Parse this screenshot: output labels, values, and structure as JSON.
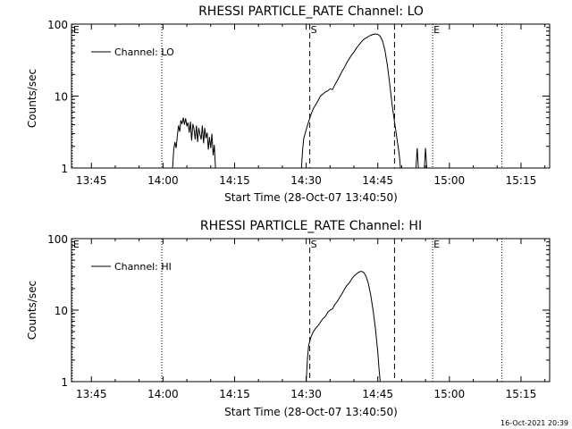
{
  "footer_timestamp": "16-Oct-2021 20:39",
  "chart_data": [
    {
      "type": "line",
      "title": "RHESSI PARTICLE_RATE Channel: LO",
      "xlabel": "Start Time (28-Oct-07 13:40:50)",
      "ylabel": "Counts/sec",
      "y_scale": "log",
      "ylim": [
        1,
        100
      ],
      "xlim": [
        "13:40:50",
        "15:21:00"
      ],
      "x_ticks": [
        "13:45",
        "14:00",
        "14:15",
        "14:30",
        "14:45",
        "15:00",
        "15:15"
      ],
      "y_ticks": [
        "1",
        "10",
        "100"
      ],
      "legend": "Channel: LO",
      "legend_position": "top-left",
      "markers": [
        {
          "label": "E",
          "time": "13:41:00",
          "style": "dotted"
        },
        {
          "label": "",
          "time": "13:59:45",
          "style": "dotted"
        },
        {
          "label": "S",
          "time": "14:30:45",
          "style": "dashed"
        },
        {
          "label": "",
          "time": "14:48:30",
          "style": "dashed"
        },
        {
          "label": "E",
          "time": "14:56:30",
          "style": "dotted"
        },
        {
          "label": "",
          "time": "15:11:00",
          "style": "dotted"
        }
      ],
      "series": [
        {
          "name": "Channel: LO",
          "segments": [
            [
              [
                "14:02:00",
                1.0
              ],
              [
                "14:02:15",
                1.8
              ],
              [
                "14:02:30",
                2.3
              ],
              [
                "14:02:45",
                1.9
              ],
              [
                "14:03:00",
                2.8
              ],
              [
                "14:03:15",
                3.9
              ],
              [
                "14:03:30",
                3.2
              ],
              [
                "14:03:45",
                4.6
              ],
              [
                "14:04:00",
                4.1
              ],
              [
                "14:04:15",
                5.0
              ],
              [
                "14:04:30",
                4.0
              ],
              [
                "14:04:45",
                4.9
              ],
              [
                "14:05:00",
                3.8
              ],
              [
                "14:05:15",
                4.3
              ],
              [
                "14:05:30",
                3.1
              ],
              [
                "14:05:45",
                4.4
              ],
              [
                "14:06:00",
                2.4
              ],
              [
                "14:06:15",
                4.1
              ],
              [
                "14:06:30",
                3.5
              ],
              [
                "14:06:45",
                2.5
              ],
              [
                "14:07:00",
                3.9
              ],
              [
                "14:07:15",
                2.3
              ],
              [
                "14:07:30",
                3.6
              ],
              [
                "14:07:45",
                2.9
              ],
              [
                "14:08:00",
                2.5
              ],
              [
                "14:08:15",
                3.9
              ],
              [
                "14:08:30",
                2.2
              ],
              [
                "14:08:45",
                3.6
              ],
              [
                "14:09:00",
                2.6
              ],
              [
                "14:09:15",
                3.1
              ],
              [
                "14:09:30",
                1.8
              ],
              [
                "14:09:45",
                2.7
              ],
              [
                "14:10:00",
                1.9
              ],
              [
                "14:10:15",
                3.0
              ],
              [
                "14:10:30",
                1.5
              ],
              [
                "14:10:45",
                2.1
              ],
              [
                "14:11:00",
                1.0
              ]
            ],
            [
              [
                "14:29:00",
                1.0
              ],
              [
                "14:29:15",
                1.8
              ],
              [
                "14:29:30",
                2.6
              ],
              [
                "14:30:00",
                3.4
              ],
              [
                "14:30:30",
                4.4
              ],
              [
                "14:31:00",
                5.5
              ],
              [
                "14:31:30",
                6.7
              ],
              [
                "14:32:00",
                7.6
              ],
              [
                "14:32:30",
                8.7
              ],
              [
                "14:33:00",
                10.0
              ],
              [
                "14:33:30",
                10.7
              ],
              [
                "14:34:00",
                11.4
              ],
              [
                "14:34:30",
                11.8
              ],
              [
                "14:35:00",
                12.6
              ],
              [
                "14:35:30",
                12.3
              ],
              [
                "14:36:00",
                14.4
              ],
              [
                "14:36:30",
                16.4
              ],
              [
                "14:37:00",
                19.0
              ],
              [
                "14:37:30",
                22.0
              ],
              [
                "14:38:00",
                25.0
              ],
              [
                "14:38:30",
                29.0
              ],
              [
                "14:39:00",
                33.0
              ],
              [
                "14:39:30",
                37.0
              ],
              [
                "14:40:00",
                41.0
              ],
              [
                "14:40:30",
                46.0
              ],
              [
                "14:41:00",
                51.0
              ],
              [
                "14:41:30",
                56.0
              ],
              [
                "14:42:00",
                61.0
              ],
              [
                "14:42:30",
                64.0
              ],
              [
                "14:43:00",
                67.0
              ],
              [
                "14:43:30",
                70.0
              ],
              [
                "14:44:00",
                72.0
              ],
              [
                "14:44:30",
                73.0
              ],
              [
                "14:45:00",
                72.0
              ],
              [
                "14:45:30",
                68.0
              ],
              [
                "14:46:00",
                58.0
              ],
              [
                "14:46:30",
                43.0
              ],
              [
                "14:47:00",
                27.0
              ],
              [
                "14:47:30",
                14.5
              ],
              [
                "14:48:00",
                7.6
              ],
              [
                "14:48:30",
                4.4
              ],
              [
                "14:49:00",
                2.6
              ],
              [
                "14:49:30",
                1.5
              ],
              [
                "14:49:45",
                1.0
              ]
            ],
            [
              [
                "14:53:00",
                1.0
              ],
              [
                "14:53:15",
                1.9
              ],
              [
                "14:53:30",
                1.0
              ]
            ],
            [
              [
                "14:54:45",
                1.0
              ],
              [
                "14:55:00",
                1.9
              ],
              [
                "14:55:15",
                1.0
              ]
            ]
          ]
        }
      ]
    },
    {
      "type": "line",
      "title": "RHESSI PARTICLE_RATE Channel: HI",
      "xlabel": "Start Time (28-Oct-07 13:40:50)",
      "ylabel": "Counts/sec",
      "y_scale": "log",
      "ylim": [
        1,
        100
      ],
      "xlim": [
        "13:40:50",
        "15:21:00"
      ],
      "x_ticks": [
        "13:45",
        "14:00",
        "14:15",
        "14:30",
        "14:45",
        "15:00",
        "15:15"
      ],
      "y_ticks": [
        "1",
        "10",
        "100"
      ],
      "legend": "Channel: HI",
      "legend_position": "top-left",
      "markers": [
        {
          "label": "E",
          "time": "13:41:00",
          "style": "dotted"
        },
        {
          "label": "",
          "time": "13:59:45",
          "style": "dotted"
        },
        {
          "label": "S",
          "time": "14:30:45",
          "style": "dashed"
        },
        {
          "label": "",
          "time": "14:48:30",
          "style": "dashed"
        },
        {
          "label": "E",
          "time": "14:56:30",
          "style": "dotted"
        },
        {
          "label": "",
          "time": "15:11:00",
          "style": "dotted"
        }
      ],
      "series": [
        {
          "name": "Channel: HI",
          "segments": [
            [
              [
                "14:30:00",
                1.0
              ],
              [
                "14:30:15",
                2.0
              ],
              [
                "14:30:30",
                3.2
              ],
              [
                "14:31:00",
                4.2
              ],
              [
                "14:31:30",
                5.0
              ],
              [
                "14:32:00",
                5.6
              ],
              [
                "14:32:30",
                6.1
              ],
              [
                "14:33:00",
                6.8
              ],
              [
                "14:33:30",
                7.6
              ],
              [
                "14:34:00",
                8.1
              ],
              [
                "14:34:30",
                9.3
              ],
              [
                "14:35:00",
                10.0
              ],
              [
                "14:35:30",
                10.4
              ],
              [
                "14:36:00",
                12.0
              ],
              [
                "14:36:30",
                13.2
              ],
              [
                "14:37:00",
                15.0
              ],
              [
                "14:37:30",
                17.0
              ],
              [
                "14:38:00",
                19.5
              ],
              [
                "14:38:30",
                22.0
              ],
              [
                "14:39:00",
                24.0
              ],
              [
                "14:39:30",
                27.0
              ],
              [
                "14:40:00",
                30.0
              ],
              [
                "14:40:30",
                32.0
              ],
              [
                "14:41:00",
                34.0
              ],
              [
                "14:41:30",
                35.0
              ],
              [
                "14:42:00",
                34.0
              ],
              [
                "14:42:30",
                30.0
              ],
              [
                "14:43:00",
                24.0
              ],
              [
                "14:43:30",
                16.5
              ],
              [
                "14:44:00",
                10.0
              ],
              [
                "14:44:30",
                5.6
              ],
              [
                "14:45:00",
                2.6
              ],
              [
                "14:45:15",
                1.5
              ],
              [
                "14:45:30",
                1.0
              ]
            ]
          ]
        }
      ]
    }
  ]
}
